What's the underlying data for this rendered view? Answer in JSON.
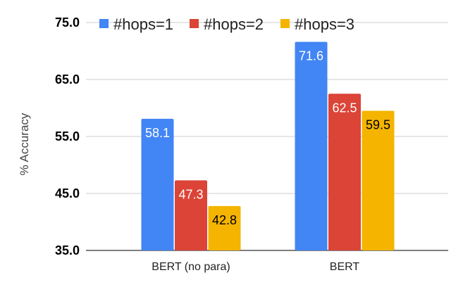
{
  "chart_data": {
    "type": "bar",
    "title": "",
    "xlabel": "",
    "ylabel": "% Accuracy",
    "ylim": [
      35,
      75
    ],
    "yticks": [
      "35.0",
      "45.0",
      "55.0",
      "65.0",
      "75.0"
    ],
    "grid": true,
    "legend_position": "top",
    "categories": [
      "BERT (no para)",
      "BERT"
    ],
    "series": [
      {
        "name": "#hops=1",
        "color": "#4285f4",
        "label_color": "#ffffff",
        "values": [
          58.1,
          71.6
        ]
      },
      {
        "name": "#hops=2",
        "color": "#db4437",
        "label_color": "#ffffff",
        "values": [
          47.3,
          62.5
        ]
      },
      {
        "name": "#hops=3",
        "color": "#f4b400",
        "label_color": "#000000",
        "values": [
          42.8,
          59.5
        ]
      }
    ]
  }
}
